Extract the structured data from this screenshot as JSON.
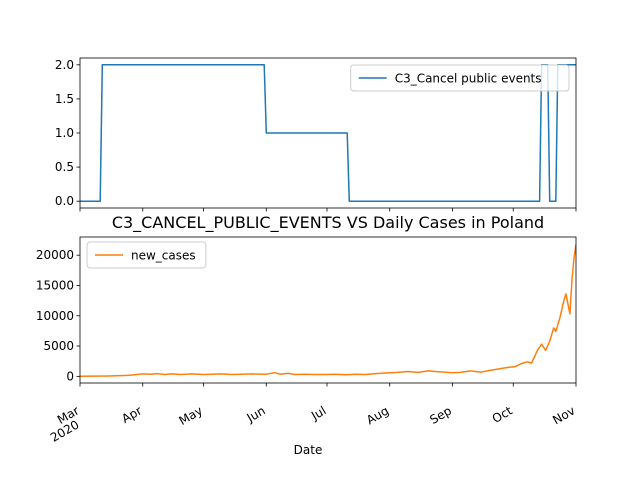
{
  "chart_data": [
    {
      "type": "line",
      "title": "",
      "xlabel": "",
      "ylabel": "",
      "ylim": [
        -0.1,
        2.1
      ],
      "x_range": [
        "2020-03-01",
        "2020-11-01"
      ],
      "yticks": [
        0.0,
        0.5,
        1.0,
        1.5,
        2.0
      ],
      "ytick_labels": [
        "0.0",
        "0.5",
        "1.0",
        "1.5",
        "2.0"
      ],
      "legend_position": "top-right",
      "grid": false,
      "series": [
        {
          "name": "C3_Cancel public events",
          "color": "#1f77b4",
          "x": [
            "2020-03-01",
            "2020-03-11",
            "2020-03-12",
            "2020-05-31",
            "2020-06-01",
            "2020-07-11",
            "2020-07-12",
            "2020-10-14",
            "2020-10-15",
            "2020-10-18",
            "2020-10-19",
            "2020-10-22",
            "2020-10-23",
            "2020-11-01"
          ],
          "values": [
            0,
            0,
            2,
            2,
            1,
            1,
            0,
            0,
            2,
            2,
            0,
            0,
            2,
            2
          ]
        }
      ]
    },
    {
      "type": "line",
      "title": "C3_CANCEL_PUBLIC_EVENTS VS Daily Cases in Poland",
      "xlabel": "Date",
      "ylabel": "",
      "ylim": [
        -1100,
        23000
      ],
      "x_range": [
        "2020-03-01",
        "2020-11-01"
      ],
      "yticks": [
        0,
        5000,
        10000,
        15000,
        20000
      ],
      "ytick_labels": [
        "0",
        "5000",
        "10000",
        "15000",
        "20000"
      ],
      "xtick_labels": [
        {
          "date": "2020-03-01",
          "label": "Mar",
          "sublabel": "2020"
        },
        {
          "date": "2020-04-01",
          "label": "Apr"
        },
        {
          "date": "2020-05-01",
          "label": "May"
        },
        {
          "date": "2020-06-01",
          "label": "Jun"
        },
        {
          "date": "2020-07-01",
          "label": "Jul"
        },
        {
          "date": "2020-08-01",
          "label": "Aug"
        },
        {
          "date": "2020-09-01",
          "label": "Sep"
        },
        {
          "date": "2020-10-01",
          "label": "Oct"
        },
        {
          "date": "2020-11-01",
          "label": "Nov"
        }
      ],
      "legend_position": "top-left",
      "grid": false,
      "series": [
        {
          "name": "new_cases",
          "color": "#ff7f0e",
          "x": [
            "2020-03-01",
            "2020-03-15",
            "2020-03-25",
            "2020-04-01",
            "2020-04-05",
            "2020-04-08",
            "2020-04-12",
            "2020-04-15",
            "2020-04-20",
            "2020-04-25",
            "2020-05-01",
            "2020-05-05",
            "2020-05-10",
            "2020-05-15",
            "2020-05-20",
            "2020-05-25",
            "2020-06-01",
            "2020-06-05",
            "2020-06-08",
            "2020-06-12",
            "2020-06-15",
            "2020-06-20",
            "2020-06-25",
            "2020-07-01",
            "2020-07-05",
            "2020-07-10",
            "2020-07-15",
            "2020-07-20",
            "2020-07-25",
            "2020-08-01",
            "2020-08-05",
            "2020-08-10",
            "2020-08-15",
            "2020-08-20",
            "2020-08-25",
            "2020-09-01",
            "2020-09-05",
            "2020-09-10",
            "2020-09-15",
            "2020-09-20",
            "2020-09-25",
            "2020-09-29",
            "2020-10-02",
            "2020-10-05",
            "2020-10-08",
            "2020-10-10",
            "2020-10-13",
            "2020-10-15",
            "2020-10-17",
            "2020-10-19",
            "2020-10-21",
            "2020-10-22",
            "2020-10-24",
            "2020-10-26",
            "2020-10-27",
            "2020-10-29",
            "2020-10-30",
            "2020-10-31",
            "2020-11-01"
          ],
          "values": [
            0,
            50,
            150,
            400,
            350,
            450,
            300,
            400,
            300,
            400,
            300,
            350,
            400,
            300,
            350,
            400,
            350,
            600,
            350,
            500,
            300,
            350,
            300,
            300,
            350,
            250,
            350,
            300,
            450,
            600,
            650,
            800,
            650,
            900,
            750,
            600,
            650,
            900,
            700,
            1000,
            1300,
            1500,
            1600,
            2100,
            2400,
            2200,
            4300,
            5300,
            4300,
            5800,
            8000,
            7400,
            9600,
            12500,
            13600,
            10300,
            16000,
            19500,
            21800
          ]
        }
      ]
    }
  ]
}
